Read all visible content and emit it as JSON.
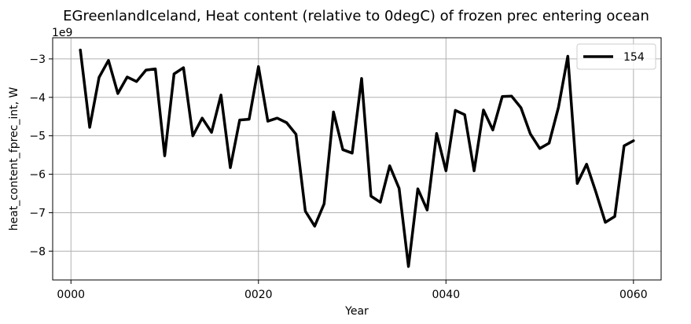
{
  "chart_data": {
    "type": "line",
    "title": "EGreenlandIceland, Heat content (relative to 0degC) of frozen prec entering ocean",
    "xlabel": "Year",
    "ylabel": "heat_content_fprec_int, W",
    "y_offset_label": "1e9",
    "xlim": [
      -1.95,
      62.95
    ],
    "ylim": [
      -8.75,
      -2.45
    ],
    "x_ticks": [
      {
        "value": 0,
        "label": "0000"
      },
      {
        "value": 20,
        "label": "0020"
      },
      {
        "value": 40,
        "label": "0040"
      },
      {
        "value": 60,
        "label": "0060"
      }
    ],
    "y_ticks": [
      {
        "value": -8,
        "label": "−8"
      },
      {
        "value": -7,
        "label": "−7"
      },
      {
        "value": -6,
        "label": "−6"
      },
      {
        "value": -5,
        "label": "−5"
      },
      {
        "value": -4,
        "label": "−4"
      },
      {
        "value": -3,
        "label": "−3"
      }
    ],
    "grid": true,
    "legend_position": "top-right",
    "series": [
      {
        "name": "154",
        "color": "#000000",
        "x": [
          1,
          2,
          3,
          4,
          5,
          6,
          7,
          8,
          9,
          10,
          11,
          12,
          13,
          14,
          15,
          16,
          17,
          18,
          19,
          20,
          21,
          22,
          23,
          24,
          25,
          26,
          27,
          28,
          29,
          30,
          31,
          32,
          33,
          34,
          35,
          36,
          37,
          38,
          39,
          40,
          41,
          42,
          43,
          44,
          45,
          46,
          47,
          48,
          49,
          50,
          51,
          52,
          53,
          54,
          55,
          56,
          57,
          58,
          59,
          60
        ],
        "values": [
          -2.77,
          -4.78,
          -3.48,
          -3.04,
          -3.9,
          -3.47,
          -3.59,
          -3.29,
          -3.26,
          -5.52,
          -3.39,
          -3.23,
          -5.0,
          -4.54,
          -4.91,
          -3.94,
          -5.83,
          -4.59,
          -4.57,
          -3.2,
          -4.62,
          -4.54,
          -4.66,
          -4.96,
          -6.96,
          -7.35,
          -6.77,
          -4.38,
          -5.36,
          -5.45,
          -3.51,
          -6.57,
          -6.73,
          -5.78,
          -6.37,
          -8.4,
          -6.38,
          -6.93,
          -4.94,
          -5.91,
          -4.34,
          -4.45,
          -5.91,
          -4.33,
          -4.85,
          -3.98,
          -3.97,
          -4.27,
          -4.95,
          -5.33,
          -5.19,
          -4.26,
          -2.93,
          -6.24,
          -5.74,
          -6.47,
          -7.25,
          -7.1,
          -5.26,
          -5.13
        ]
      }
    ]
  }
}
